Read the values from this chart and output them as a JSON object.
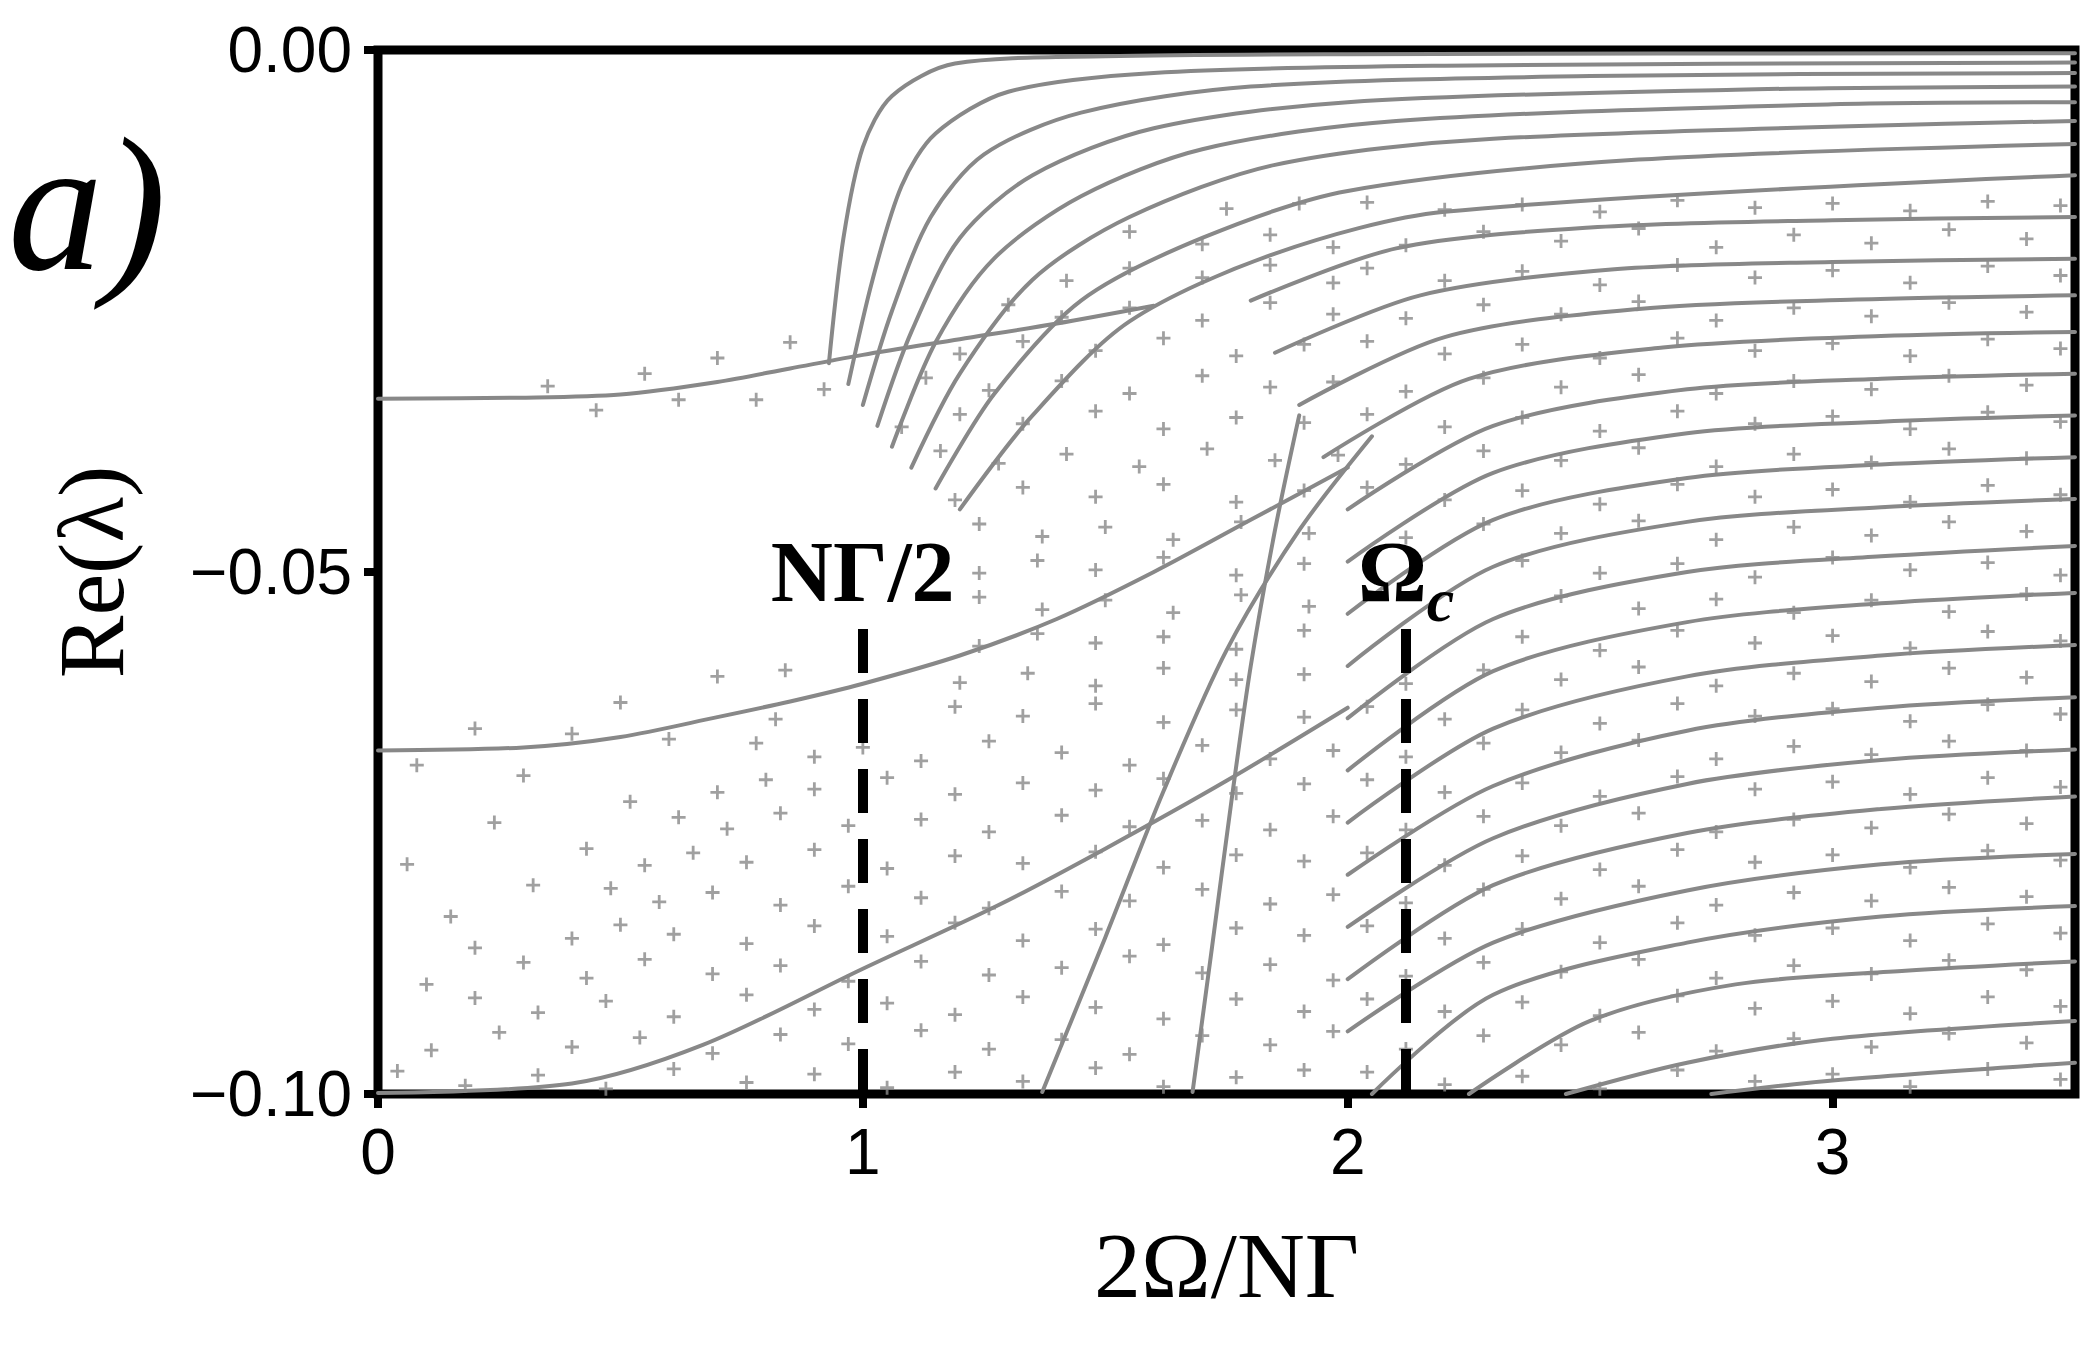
{
  "chart_data": {
    "type": "scatter",
    "xlabel": "2Ω/NΓ",
    "ylabel": "Re(λ)",
    "annotations": [
      "a)"
    ],
    "xlim": [
      0,
      3.5
    ],
    "ylim": [
      -0.1,
      0
    ],
    "xticks": [
      0,
      1,
      2,
      3
    ],
    "yticks": [
      {
        "value": -0.1,
        "label": "−0.10"
      },
      {
        "value": -0.05,
        "label": "−0.05"
      },
      {
        "value": 0,
        "label": "0.00"
      }
    ],
    "grid": false,
    "marker": "cross",
    "ref_lines": [
      {
        "axis": "x",
        "value": 1,
        "label": "NΓ/2",
        "color": "#000000",
        "line_style": "dashed"
      },
      {
        "axis": "x",
        "value": 2.12,
        "label": "Ω$_{c}$",
        "color": "#000000",
        "line_style": "dashed"
      }
    ],
    "series": [
      {
        "color": "#888888",
        "x": [
          0.04,
          0.18,
          0.33,
          0.47,
          0.61,
          0.76,
          0.9,
          1.05,
          1.19,
          1.33,
          1.48,
          1.62,
          1.77,
          1.91,
          0.11,
          0.25,
          0.4,
          0.54,
          0.69,
          0.83,
          0.97,
          1.12,
          1.26,
          1.41,
          1.55,
          1.7,
          1.84,
          1.97,
          0.2,
          0.33,
          0.47,
          0.61,
          0.76,
          0.9,
          1.05,
          1.19,
          1.33,
          1.48,
          1.62,
          1.77,
          1.91,
          0.3,
          0.43,
          0.55,
          0.69,
          0.83,
          0.97,
          1.12,
          1.26,
          1.41,
          1.55,
          1.7,
          1.84,
          1.97,
          0.4,
          0.5,
          0.61,
          0.76,
          0.9,
          1.05,
          1.19,
          1.33,
          1.48,
          1.62,
          1.77,
          1.91,
          0.48,
          0.58,
          0.69,
          0.83,
          0.97,
          1.12,
          1.26,
          1.41,
          1.55,
          1.7,
          1.84,
          1.97,
          0.55,
          0.65,
          0.76,
          0.9,
          1.05,
          1.19,
          1.33,
          1.48,
          1.62,
          1.77,
          1.91,
          0.62,
          0.72,
          0.83,
          0.97,
          1.12,
          1.26,
          1.41,
          1.55,
          1.7,
          1.84,
          1.97,
          0.7,
          0.8,
          0.9,
          1.05,
          1.19,
          1.33,
          1.48,
          1.62,
          1.77,
          1.91,
          0.06,
          0.15,
          0.24,
          0.32,
          0.43,
          0.52,
          0.1,
          0.2
        ],
        "values": [
          -0.0978,
          -0.0992,
          -0.0982,
          -0.0995,
          -0.0976,
          -0.0989,
          -0.0981,
          -0.0994,
          -0.0979,
          -0.0988,
          -0.0975,
          -0.0993,
          -0.0984,
          -0.0977,
          -0.0958,
          -0.0941,
          -0.0955,
          -0.0946,
          -0.0961,
          -0.0943,
          -0.0952,
          -0.0939,
          -0.0957,
          -0.0948,
          -0.0962,
          -0.0944,
          -0.0953,
          -0.094,
          -0.0908,
          -0.0922,
          -0.0911,
          -0.0926,
          -0.0905,
          -0.0919,
          -0.0913,
          -0.0924,
          -0.0907,
          -0.0917,
          -0.0928,
          -0.0909,
          -0.0921,
          -0.0874,
          -0.0889,
          -0.0871,
          -0.0885,
          -0.0877,
          -0.0892,
          -0.0873,
          -0.0886,
          -0.0879,
          -0.0868,
          -0.0884,
          -0.0876,
          -0.0891,
          -0.0851,
          -0.0838,
          -0.0847,
          -0.0856,
          -0.0839,
          -0.0849,
          -0.0836,
          -0.0853,
          -0.0842,
          -0.0857,
          -0.0841,
          -0.0848,
          -0.0803,
          -0.0816,
          -0.0807,
          -0.0819,
          -0.0801,
          -0.0812,
          -0.0822,
          -0.0806,
          -0.0815,
          -0.0804,
          -0.0818,
          -0.0809,
          -0.0781,
          -0.0769,
          -0.0778,
          -0.0766,
          -0.0784,
          -0.0772,
          -0.0779,
          -0.0768,
          -0.0783,
          -0.0771,
          -0.0777,
          -0.0735,
          -0.0746,
          -0.0731,
          -0.0743,
          -0.0737,
          -0.0749,
          -0.0733,
          -0.0744,
          -0.0738,
          -0.0747,
          -0.0734,
          -0.0711,
          -0.0699,
          -0.0708,
          -0.0697,
          -0.0713,
          -0.0702,
          -0.0709,
          -0.0698,
          -0.0712,
          -0.0703,
          -0.078,
          -0.083,
          -0.074,
          -0.08,
          -0.0765,
          -0.072,
          -0.0895,
          -0.086
        ]
      },
      {
        "color": "#888888",
        "x": [
          0.78,
          0.9,
          1.0,
          1.12,
          1.26,
          1.41,
          1.55,
          1.7,
          1.84,
          1.97,
          0.82,
          1.19,
          1.33,
          1.48,
          1.62,
          1.77,
          1.91,
          0.84,
          1.2,
          1.34,
          1.48,
          1.62,
          1.77,
          1.91,
          1.24,
          1.36,
          1.48,
          1.62,
          1.77,
          1.91,
          1.24,
          1.37,
          1.5,
          1.64,
          1.78,
          1.92,
          1.24,
          1.36,
          1.48,
          1.62,
          1.77,
          1.91,
          1.24,
          1.37,
          1.5,
          1.64,
          1.78,
          1.92,
          1.19,
          1.33,
          1.48,
          1.62,
          1.77,
          1.91,
          1.16,
          1.28,
          1.42,
          1.57,
          1.71,
          1.85,
          1.98,
          1.08,
          1.2,
          1.33,
          1.48,
          1.62,
          1.77,
          1.91,
          1.13,
          1.26,
          1.41,
          1.55,
          1.7,
          1.84,
          1.97,
          1.2,
          1.33,
          1.48,
          1.62,
          1.77,
          1.91,
          1.3,
          1.41,
          1.55,
          1.7,
          1.84,
          1.97,
          1.42,
          1.55,
          1.7,
          1.84,
          1.97,
          1.55,
          1.7,
          1.84,
          1.97,
          1.75,
          1.9,
          0.35,
          0.45,
          0.55,
          0.62,
          0.7,
          0.78,
          0.85,
          0.92,
          0.08,
          0.2,
          0.3,
          0.4,
          0.5,
          0.6,
          0.7
        ],
        "values": [
          -0.0664,
          -0.0677,
          -0.0668,
          -0.0681,
          -0.0662,
          -0.0673,
          -0.0685,
          -0.0666,
          -0.0679,
          -0.0671,
          -0.0641,
          -0.0629,
          -0.0638,
          -0.0626,
          -0.0644,
          -0.0632,
          -0.0639,
          -0.0594,
          -0.0606,
          -0.0597,
          -0.0609,
          -0.0592,
          -0.0603,
          -0.0598,
          -0.0571,
          -0.0559,
          -0.0568,
          -0.0562,
          -0.0574,
          -0.0556,
          -0.0524,
          -0.0536,
          -0.0527,
          -0.0539,
          -0.0522,
          -0.0533,
          -0.0501,
          -0.0489,
          -0.0498,
          -0.0486,
          -0.0503,
          -0.0492,
          -0.0454,
          -0.0466,
          -0.0457,
          -0.0469,
          -0.0452,
          -0.0463,
          -0.0431,
          -0.0419,
          -0.0428,
          -0.0416,
          -0.0433,
          -0.0422,
          -0.0384,
          -0.0396,
          -0.0387,
          -0.0399,
          -0.0382,
          -0.0393,
          -0.0388,
          -0.0361,
          -0.0349,
          -0.0358,
          -0.0346,
          -0.0363,
          -0.0352,
          -0.0357,
          -0.0314,
          -0.0326,
          -0.0317,
          -0.0329,
          -0.0312,
          -0.0323,
          -0.0318,
          -0.0291,
          -0.0279,
          -0.0288,
          -0.0276,
          -0.0293,
          -0.0282,
          -0.0244,
          -0.0256,
          -0.0247,
          -0.0259,
          -0.0242,
          -0.0253,
          -0.0221,
          -0.0209,
          -0.0218,
          -0.0206,
          -0.0223,
          -0.0174,
          -0.0186,
          -0.0177,
          -0.0189,
          -0.0152,
          -0.0147,
          -0.0322,
          -0.0345,
          -0.031,
          -0.0335,
          -0.0295,
          -0.0335,
          -0.028,
          -0.0325,
          -0.0685,
          -0.065,
          -0.0695,
          -0.0655,
          -0.0625,
          -0.066,
          -0.06
        ]
      },
      {
        "color": "#888888",
        "x": [
          2.04,
          2.2,
          2.36,
          2.52,
          2.68,
          2.84,
          3.0,
          3.16,
          3.32,
          3.47,
          2.12,
          2.28,
          2.44,
          2.6,
          2.76,
          2.92,
          3.08,
          3.24,
          3.4,
          2.04,
          2.2,
          2.36,
          2.52,
          2.68,
          2.84,
          3.0,
          3.16,
          3.32,
          3.47,
          2.12,
          2.28,
          2.44,
          2.6,
          2.76,
          2.92,
          3.08,
          3.24,
          3.4,
          2.04,
          2.2,
          2.36,
          2.52,
          2.68,
          2.84,
          3.0,
          3.16,
          3.32,
          3.47,
          2.12,
          2.28,
          2.44,
          2.6,
          2.76,
          2.92,
          3.08,
          3.24,
          3.4,
          2.04,
          2.2,
          2.36,
          2.52,
          2.68,
          2.84,
          3.0,
          3.16,
          3.32,
          3.47,
          2.12,
          2.28,
          2.44,
          2.6,
          2.76,
          2.92,
          3.08,
          3.24,
          3.4,
          2.04,
          2.2,
          2.36,
          2.52,
          2.68,
          2.84,
          3.0,
          3.16,
          3.32,
          3.47,
          2.12,
          2.28,
          2.44,
          2.6,
          2.76,
          2.92,
          3.08,
          3.24,
          3.4,
          2.04,
          2.2,
          2.36,
          2.52,
          2.68,
          2.84,
          3.0,
          3.16,
          3.32,
          3.47,
          2.12,
          2.28,
          2.44,
          2.6,
          2.76,
          2.92,
          3.08,
          3.24,
          3.4
        ],
        "values": [
          -0.0979,
          -0.0991,
          -0.0983,
          -0.0995,
          -0.0977,
          -0.0988,
          -0.0981,
          -0.0993,
          -0.0976,
          -0.0986,
          -0.0957,
          -0.0944,
          -0.0953,
          -0.0941,
          -0.0959,
          -0.0947,
          -0.0955,
          -0.0942,
          -0.0951,
          -0.0909,
          -0.0921,
          -0.0912,
          -0.0925,
          -0.0906,
          -0.0918,
          -0.0911,
          -0.0923,
          -0.0907,
          -0.0916,
          -0.0887,
          -0.0874,
          -0.0883,
          -0.0871,
          -0.0889,
          -0.0877,
          -0.0885,
          -0.0872,
          -0.0881,
          -0.0839,
          -0.0851,
          -0.0842,
          -0.0855,
          -0.0836,
          -0.0848,
          -0.0841,
          -0.0853,
          -0.0837,
          -0.0846,
          -0.0817,
          -0.0804,
          -0.0813,
          -0.0801,
          -0.0819,
          -0.0807,
          -0.0815,
          -0.0802,
          -0.0811,
          -0.0769,
          -0.0781,
          -0.0772,
          -0.0785,
          -0.0766,
          -0.0778,
          -0.0771,
          -0.0783,
          -0.0767,
          -0.0776,
          -0.0747,
          -0.0734,
          -0.0743,
          -0.0731,
          -0.0749,
          -0.0737,
          -0.0745,
          -0.0732,
          -0.0741,
          -0.0699,
          -0.0711,
          -0.0702,
          -0.0715,
          -0.0696,
          -0.0708,
          -0.0701,
          -0.0713,
          -0.0697,
          -0.0706,
          -0.0677,
          -0.0664,
          -0.0673,
          -0.0661,
          -0.0679,
          -0.0667,
          -0.0675,
          -0.0662,
          -0.0671,
          -0.0629,
          -0.0641,
          -0.0632,
          -0.0645,
          -0.0626,
          -0.0638,
          -0.0631,
          -0.0643,
          -0.0627,
          -0.0636,
          -0.0607,
          -0.0594,
          -0.0603,
          -0.0591,
          -0.0609,
          -0.0597,
          -0.0605,
          -0.0592,
          -0.0601
        ]
      },
      {
        "color": "#888888",
        "x": [
          2.36,
          2.52,
          2.68,
          2.84,
          3.0,
          3.16,
          3.32,
          3.47,
          2.44,
          2.6,
          2.76,
          2.92,
          3.08,
          3.24,
          3.4,
          2.36,
          2.52,
          2.68,
          2.84,
          3.0,
          3.16,
          3.32,
          3.47,
          2.12,
          2.28,
          2.44,
          2.6,
          2.76,
          2.92,
          3.08,
          3.24,
          3.4,
          2.04,
          2.2,
          2.36,
          2.52,
          2.68,
          2.84,
          3.0,
          3.16,
          3.32,
          3.47,
          2.12,
          2.28,
          2.44,
          2.6,
          2.76,
          2.92,
          3.08,
          3.24,
          3.4,
          2.04,
          2.2,
          2.36,
          2.52,
          2.68,
          2.84,
          3.0,
          3.16,
          3.32,
          3.47,
          2.12,
          2.28,
          2.44,
          2.6,
          2.76,
          2.92,
          3.08,
          3.24,
          3.4,
          2.04,
          2.2,
          2.36,
          2.52,
          2.68,
          2.84,
          3.0,
          3.16,
          3.32,
          3.47,
          2.12,
          2.28,
          2.44,
          2.6,
          2.76,
          2.92,
          3.08,
          3.24,
          3.4,
          2.04,
          2.2,
          2.36,
          2.52,
          2.68,
          2.84,
          3.0,
          3.16,
          3.32,
          3.47,
          2.12,
          2.28,
          2.44,
          2.6,
          2.76,
          2.92,
          3.08,
          3.24,
          3.4,
          2.04,
          2.2,
          2.36,
          2.52,
          2.68,
          2.84,
          3.0,
          3.16,
          3.32,
          3.47
        ],
        "values": [
          -0.0562,
          -0.0575,
          -0.0556,
          -0.0568,
          -0.0561,
          -0.0573,
          -0.0557,
          -0.0566,
          -0.0523,
          -0.0535,
          -0.0526,
          -0.0539,
          -0.0527,
          -0.0538,
          -0.0521,
          -0.0489,
          -0.0501,
          -0.0492,
          -0.0505,
          -0.0486,
          -0.0498,
          -0.0491,
          -0.0503,
          -0.0467,
          -0.0454,
          -0.0463,
          -0.0451,
          -0.0469,
          -0.0457,
          -0.0465,
          -0.0452,
          -0.0461,
          -0.0419,
          -0.0431,
          -0.0422,
          -0.0435,
          -0.0416,
          -0.0428,
          -0.0421,
          -0.0433,
          -0.0417,
          -0.0426,
          -0.0397,
          -0.0384,
          -0.0393,
          -0.0381,
          -0.0399,
          -0.0387,
          -0.0395,
          -0.0382,
          -0.0391,
          -0.0349,
          -0.0361,
          -0.0352,
          -0.0365,
          -0.0346,
          -0.0358,
          -0.0351,
          -0.0363,
          -0.0347,
          -0.0356,
          -0.0327,
          -0.0314,
          -0.0323,
          -0.0311,
          -0.0329,
          -0.0317,
          -0.0325,
          -0.0312,
          -0.0321,
          -0.0279,
          -0.0291,
          -0.0282,
          -0.0295,
          -0.0276,
          -0.0288,
          -0.0281,
          -0.0293,
          -0.0277,
          -0.0286,
          -0.0257,
          -0.0244,
          -0.0253,
          -0.0241,
          -0.0259,
          -0.0247,
          -0.0255,
          -0.0242,
          -0.0251,
          -0.0209,
          -0.0221,
          -0.0212,
          -0.0225,
          -0.0206,
          -0.0218,
          -0.0211,
          -0.0223,
          -0.0207,
          -0.0216,
          -0.0187,
          -0.0174,
          -0.0183,
          -0.0171,
          -0.0189,
          -0.0177,
          -0.0185,
          -0.0172,
          -0.0181,
          -0.0146,
          -0.0153,
          -0.0148,
          -0.0155,
          -0.0144,
          -0.0151,
          -0.0147,
          -0.0154,
          -0.0145,
          -0.0149
        ]
      },
      {
        "type": "line",
        "marker": "none",
        "color": "#888888",
        "x": [
          0,
          0.3,
          0.5,
          0.7,
          0.85,
          1.0,
          1.2,
          1.4,
          1.6
        ],
        "values": [
          -0.0334,
          -0.0333,
          -0.033,
          -0.0318,
          -0.0305,
          -0.0292,
          -0.0277,
          -0.0262,
          -0.0245
        ]
      },
      {
        "type": "line",
        "marker": "none",
        "color": "#888888",
        "x": [
          0,
          0.3,
          0.5,
          0.7,
          0.85,
          1.0,
          1.2,
          1.4,
          1.6,
          1.8,
          2.0
        ],
        "values": [
          -0.0671,
          -0.0668,
          -0.0658,
          -0.0639,
          -0.0624,
          -0.0607,
          -0.058,
          -0.0545,
          -0.05,
          -0.045,
          -0.04
        ]
      },
      {
        "type": "line",
        "marker": "none",
        "color": "#888888",
        "x": [
          0,
          0.4,
          0.67,
          1.0,
          1.28,
          1.5,
          1.75,
          2.0
        ],
        "values": [
          -0.0999,
          -0.099,
          -0.0953,
          -0.088,
          -0.0819,
          -0.0765,
          -0.07,
          -0.063
        ]
      },
      {
        "type": "line",
        "marker": "none",
        "color": "#888888",
        "x": [
          1.37,
          1.5,
          1.62,
          1.75,
          1.9,
          2.05
        ],
        "values": [
          -0.0998,
          -0.085,
          -0.071,
          -0.0575,
          -0.046,
          -0.037
        ]
      },
      {
        "type": "line",
        "marker": "none",
        "color": "#888888",
        "x": [
          1.68,
          1.72,
          1.76,
          1.8,
          1.85,
          1.9
        ],
        "values": [
          -0.0998,
          -0.086,
          -0.072,
          -0.059,
          -0.046,
          -0.035
        ]
      },
      {
        "type": "line",
        "marker": "none",
        "color": "#888888",
        "x": [
          0.93,
          0.96,
          1.0,
          1.06,
          1.19,
          1.5,
          2.0,
          3.5
        ],
        "values": [
          -0.03,
          -0.018,
          -0.0093,
          -0.0044,
          -0.0013,
          -0.0006,
          -0.0004,
          -0.0003
        ]
      },
      {
        "type": "line",
        "marker": "none",
        "color": "#888888",
        "x": [
          0.97,
          1.02,
          1.08,
          1.15,
          1.3,
          1.6,
          2.2,
          3.5
        ],
        "values": [
          -0.032,
          -0.022,
          -0.013,
          -0.008,
          -0.004,
          -0.0022,
          -0.0015,
          -0.0012
        ]
      },
      {
        "type": "line",
        "marker": "none",
        "color": "#888888",
        "x": [
          1.0,
          1.06,
          1.14,
          1.25,
          1.45,
          1.8,
          2.5,
          3.5
        ],
        "values": [
          -0.034,
          -0.025,
          -0.016,
          -0.01,
          -0.006,
          -0.0035,
          -0.0025,
          -0.0022
        ]
      },
      {
        "type": "line",
        "marker": "none",
        "color": "#888888",
        "x": [
          1.03,
          1.1,
          1.2,
          1.35,
          1.6,
          2.0,
          2.8,
          3.5
        ],
        "values": [
          -0.036,
          -0.027,
          -0.018,
          -0.012,
          -0.0075,
          -0.005,
          -0.0038,
          -0.0035
        ]
      },
      {
        "type": "line",
        "marker": "none",
        "color": "#888888",
        "x": [
          1.06,
          1.15,
          1.27,
          1.45,
          1.7,
          2.1,
          3.0,
          3.5
        ],
        "values": [
          -0.038,
          -0.028,
          -0.02,
          -0.014,
          -0.0095,
          -0.0068,
          -0.0052,
          -0.005
        ]
      },
      {
        "type": "line",
        "marker": "none",
        "color": "#888888",
        "x": [
          1.1,
          1.2,
          1.35,
          1.55,
          1.85,
          2.3,
          3.5
        ],
        "values": [
          -0.04,
          -0.031,
          -0.022,
          -0.016,
          -0.011,
          -0.0085,
          -0.0068
        ]
      },
      {
        "type": "line",
        "marker": "none",
        "color": "#888888",
        "x": [
          1.15,
          1.27,
          1.45,
          1.7,
          2.0,
          2.6,
          3.5
        ],
        "values": [
          -0.042,
          -0.033,
          -0.024,
          -0.018,
          -0.0135,
          -0.0105,
          -0.009
        ]
      },
      {
        "type": "line",
        "marker": "none",
        "color": "#888888",
        "x": [
          1.2,
          1.35,
          1.55,
          1.85,
          2.2,
          3.5
        ],
        "values": [
          -0.044,
          -0.035,
          -0.026,
          -0.0195,
          -0.0155,
          -0.012
        ]
      },
      {
        "type": "line",
        "marker": "none",
        "color": "#888888",
        "x": [
          1.8,
          2.1,
          2.5,
          3.0,
          3.5
        ],
        "values": [
          -0.024,
          -0.019,
          -0.017,
          -0.0163,
          -0.016
        ]
      },
      {
        "type": "line",
        "marker": "none",
        "color": "#888888",
        "x": [
          1.85,
          2.15,
          2.55,
          3.0,
          3.5
        ],
        "values": [
          -0.029,
          -0.0235,
          -0.021,
          -0.0203,
          -0.02
        ]
      },
      {
        "type": "line",
        "marker": "none",
        "color": "#888888",
        "x": [
          1.9,
          2.2,
          2.6,
          3.05,
          3.5
        ],
        "values": [
          -0.034,
          -0.0275,
          -0.0248,
          -0.0239,
          -0.0235
        ]
      },
      {
        "type": "line",
        "marker": "none",
        "color": "#888888",
        "x": [
          1.95,
          2.25,
          2.65,
          3.1,
          3.5
        ],
        "values": [
          -0.039,
          -0.0315,
          -0.0285,
          -0.0274,
          -0.027
        ]
      },
      {
        "type": "line",
        "marker": "none",
        "color": "#888888",
        "x": [
          2.0,
          2.3,
          2.7,
          3.1,
          3.5
        ],
        "values": [
          -0.044,
          -0.036,
          -0.0325,
          -0.0315,
          -0.031
        ]
      },
      {
        "type": "line",
        "marker": "none",
        "color": "#888888",
        "x": [
          2.0,
          2.3,
          2.7,
          3.1,
          3.5
        ],
        "values": [
          -0.049,
          -0.0405,
          -0.0367,
          -0.0356,
          -0.035
        ]
      },
      {
        "type": "line",
        "marker": "none",
        "color": "#888888",
        "x": [
          2.0,
          2.3,
          2.7,
          3.1,
          3.5
        ],
        "values": [
          -0.054,
          -0.045,
          -0.041,
          -0.0397,
          -0.039
        ]
      },
      {
        "type": "line",
        "marker": "none",
        "color": "#888888",
        "x": [
          2.0,
          2.3,
          2.7,
          3.1,
          3.5
        ],
        "values": [
          -0.059,
          -0.0495,
          -0.0452,
          -0.0438,
          -0.043
        ]
      },
      {
        "type": "line",
        "marker": "none",
        "color": "#888888",
        "x": [
          2.0,
          2.3,
          2.7,
          3.1,
          3.5
        ],
        "values": [
          -0.064,
          -0.0545,
          -0.05,
          -0.0485,
          -0.0475
        ]
      },
      {
        "type": "line",
        "marker": "none",
        "color": "#888888",
        "x": [
          2.0,
          2.3,
          2.7,
          3.1,
          3.5
        ],
        "values": [
          -0.069,
          -0.0595,
          -0.0548,
          -0.053,
          -0.052
        ]
      },
      {
        "type": "line",
        "marker": "none",
        "color": "#888888",
        "x": [
          2.0,
          2.3,
          2.7,
          3.1,
          3.5
        ],
        "values": [
          -0.074,
          -0.065,
          -0.06,
          -0.058,
          -0.057
        ]
      },
      {
        "type": "line",
        "marker": "none",
        "color": "#888888",
        "x": [
          2.0,
          2.3,
          2.7,
          3.1,
          3.5
        ],
        "values": [
          -0.079,
          -0.0705,
          -0.0652,
          -0.063,
          -0.062
        ]
      },
      {
        "type": "line",
        "marker": "none",
        "color": "#888888",
        "x": [
          2.0,
          2.3,
          2.7,
          3.1,
          3.5
        ],
        "values": [
          -0.084,
          -0.0755,
          -0.0703,
          -0.068,
          -0.067
        ]
      },
      {
        "type": "line",
        "marker": "none",
        "color": "#888888",
        "x": [
          2.0,
          2.3,
          2.7,
          3.1,
          3.5
        ],
        "values": [
          -0.089,
          -0.08,
          -0.075,
          -0.0727,
          -0.0715
        ]
      },
      {
        "type": "line",
        "marker": "none",
        "color": "#888888",
        "x": [
          2.0,
          2.3,
          2.7,
          3.1,
          3.5
        ],
        "values": [
          -0.094,
          -0.0855,
          -0.0805,
          -0.078,
          -0.077
        ]
      },
      {
        "type": "line",
        "marker": "none",
        "color": "#888888",
        "x": [
          2.05,
          2.3,
          2.7,
          3.1,
          3.5
        ],
        "values": [
          -0.1,
          -0.0905,
          -0.0855,
          -0.083,
          -0.082
        ]
      },
      {
        "type": "line",
        "marker": "none",
        "color": "#888888",
        "x": [
          2.25,
          2.5,
          2.8,
          3.15,
          3.5
        ],
        "values": [
          -0.1,
          -0.093,
          -0.0895,
          -0.0882,
          -0.0873
        ]
      },
      {
        "type": "line",
        "marker": "none",
        "color": "#888888",
        "x": [
          2.45,
          2.7,
          3.0,
          3.5
        ],
        "values": [
          -0.1,
          -0.097,
          -0.0947,
          -0.093
        ]
      },
      {
        "type": "line",
        "marker": "none",
        "color": "#888888",
        "x": [
          2.75,
          3.0,
          3.5
        ],
        "values": [
          -0.1,
          -0.0987,
          -0.097
        ]
      }
    ]
  }
}
